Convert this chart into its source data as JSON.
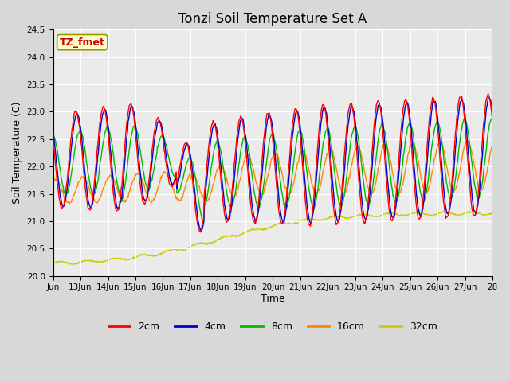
{
  "title": "Tonzi Soil Temperature Set A",
  "xlabel": "Time",
  "ylabel": "Soil Temperature (C)",
  "annotation": "TZ_fmet",
  "annotation_color": "#cc0000",
  "annotation_bg": "#ffffcc",
  "annotation_border": "#999900",
  "ylim": [
    20.0,
    24.5
  ],
  "yticks": [
    20.0,
    20.5,
    21.0,
    21.5,
    22.0,
    22.5,
    23.0,
    23.5,
    24.0,
    24.5
  ],
  "colors": {
    "2cm": "#ff0000",
    "4cm": "#0000cc",
    "8cm": "#00bb00",
    "16cm": "#ff8800",
    "32cm": "#cccc00"
  },
  "line_width": 1.0,
  "bg_color": "#d8d8d8",
  "plot_bg_color": "#ebebeb",
  "grid_color": "#ffffff",
  "x_start": 12.0,
  "x_end": 28.0,
  "xtick_positions": [
    12,
    13,
    14,
    15,
    16,
    17,
    18,
    19,
    20,
    21,
    22,
    23,
    24,
    25,
    26,
    27,
    28
  ],
  "xtick_labels": [
    "Jun",
    "13Jun",
    "14Jun",
    "15Jun",
    "16Jun",
    "17Jun",
    "18Jun",
    "19Jun",
    "20Jun",
    "21Jun",
    "22Jun",
    "23Jun",
    "24Jun",
    "25Jun",
    "26Jun",
    "27Jun",
    "28"
  ],
  "legend_labels": [
    "2cm",
    "4cm",
    "8cm",
    "16cm",
    "32cm"
  ],
  "title_fontsize": 12,
  "axis_label_fontsize": 9,
  "tick_fontsize": 7.5,
  "legend_fontsize": 9
}
